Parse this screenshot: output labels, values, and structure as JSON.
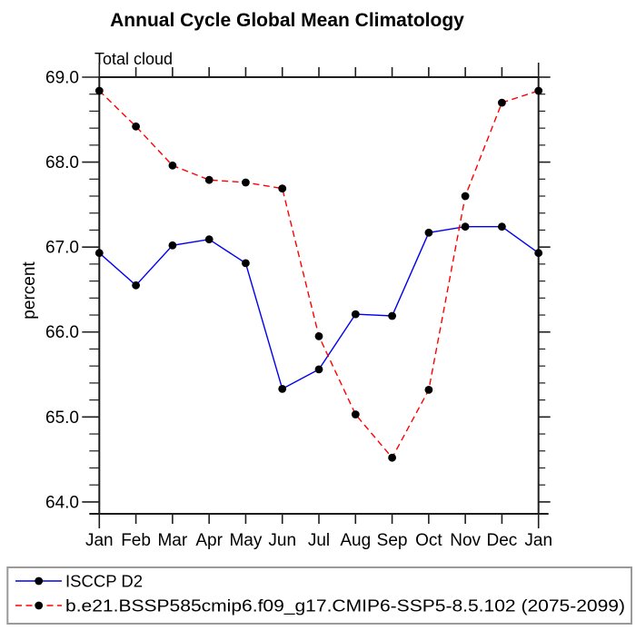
{
  "title": "Annual Cycle Global Mean Climatology",
  "colors": {
    "axis": "#1e1e1e",
    "marker": "#000000",
    "legend_border": "#9a9a9a",
    "series_blue": "#0000ee",
    "series_red": "#ff0000"
  },
  "chart_data": {
    "type": "line",
    "title": "Annual Cycle Global Mean Climatology",
    "subtitle": "Total cloud",
    "ylabel": "percent",
    "xlabel": "",
    "categories": [
      "Jan",
      "Feb",
      "Mar",
      "Apr",
      "May",
      "Jun",
      "Jul",
      "Aug",
      "Sep",
      "Oct",
      "Nov",
      "Dec",
      "Jan"
    ],
    "series": [
      {
        "name": "ISCCP D2",
        "color": "#0000ee",
        "line_style": "solid",
        "marker": "filled-circle",
        "marker_color": "#000000",
        "values": [
          66.93,
          66.55,
          67.02,
          67.09,
          66.81,
          65.33,
          65.56,
          66.21,
          66.19,
          67.17,
          67.24,
          67.24,
          66.93
        ]
      },
      {
        "name": "b.e21.BSSP585cmip6.f09_g17.CMIP6-SSP5-8.5.102 (2075-2099)",
        "color": "#ff0000",
        "line_style": "dashed",
        "marker": "filled-circle",
        "marker_color": "#000000",
        "values": [
          68.84,
          68.42,
          67.96,
          67.79,
          67.76,
          67.69,
          65.95,
          65.03,
          64.52,
          65.32,
          67.6,
          68.7,
          68.84
        ]
      }
    ],
    "ylim": [
      63.86,
      69.0
    ],
    "y_major_ticks": [
      69.0,
      68.0,
      67.0,
      66.0,
      65.0,
      64.0
    ],
    "y_tick_labels": [
      "69.0",
      "68.0",
      "67.0",
      "66.0",
      "65.0",
      "64.0"
    ],
    "y_minor_step": 0.2,
    "grid": false,
    "legend_position": "bottom-left-box"
  }
}
